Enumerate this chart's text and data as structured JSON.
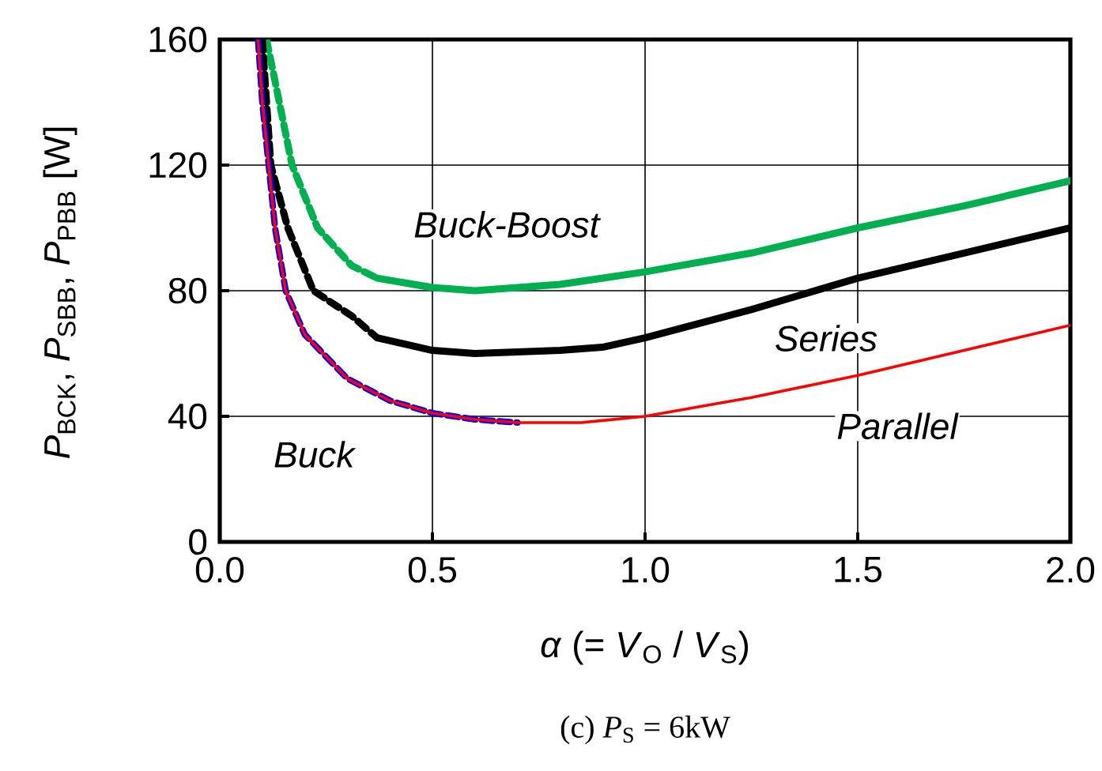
{
  "chart_data": {
    "type": "line",
    "xlabel": "*α* (= *V*$_{O}$ / *V*$_{S}$)",
    "ylabel": "*P*$_{BCK}$, *P*$_{SBB}$, *P*$_{PBB}$ [W]",
    "annotations": [
      "(c) *P*$_{S}$ = 6kW"
    ],
    "xlim": [
      0,
      2
    ],
    "ylim": [
      0,
      160
    ],
    "xticks": [
      {
        "value": 0,
        "label": "0.0"
      },
      {
        "value": 0.5,
        "label": "0.5"
      },
      {
        "value": 1,
        "label": "1.0"
      },
      {
        "value": 1.5,
        "label": "1.5"
      },
      {
        "value": 2,
        "label": "2.0"
      }
    ],
    "yticks": [
      0,
      40,
      80,
      120,
      160
    ],
    "grid": true,
    "marker": "none",
    "series": [
      {
        "color": "#00b050",
        "line_style": "dashed",
        "x": [
          0.11,
          0.14,
          0.17,
          0.23,
          0.31,
          0.37
        ],
        "values": [
          160,
          140,
          120,
          100,
          88,
          84
        ]
      },
      {
        "name": "Buck-Boost",
        "color": "#00b050",
        "line_style": "solid",
        "x": [
          0.37,
          0.5,
          0.6,
          0.8,
          1.0,
          1.25,
          1.5,
          1.75,
          2.0
        ],
        "values": [
          84,
          81,
          80,
          82,
          86,
          92,
          100,
          107,
          115
        ]
      },
      {
        "color": "#000000",
        "line_style": "dashed",
        "x": [
          0.1,
          0.12,
          0.16,
          0.22,
          0.31,
          0.37
        ],
        "values": [
          160,
          120,
          100,
          80,
          72,
          65
        ]
      },
      {
        "name": "Series",
        "color": "#000000",
        "line_style": "solid",
        "x": [
          0.37,
          0.5,
          0.6,
          0.8,
          0.9,
          1.0,
          1.25,
          1.5,
          1.75,
          2.0
        ],
        "values": [
          65,
          61,
          60,
          61,
          62,
          65,
          74,
          84,
          92,
          100
        ]
      },
      {
        "name": "Buck",
        "color": "#0000ff",
        "line_style": "dashed",
        "x": [
          0.09,
          0.1,
          0.115,
          0.13,
          0.155,
          0.2,
          0.25,
          0.3,
          0.4,
          0.5,
          0.6,
          0.7
        ],
        "values": [
          160,
          140,
          120,
          100,
          80,
          66,
          59,
          52,
          45,
          41,
          39,
          38
        ]
      },
      {
        "name": "Parallel",
        "color": "#ff0000",
        "line_style": "solid",
        "x": [
          0.09,
          0.1,
          0.115,
          0.13,
          0.155,
          0.2,
          0.25,
          0.3,
          0.4,
          0.5,
          0.6,
          0.7,
          0.85,
          1.0,
          1.25,
          1.5,
          1.75,
          2.0
        ],
        "values": [
          160,
          140,
          120,
          100,
          80,
          66,
          59,
          52,
          45,
          41,
          39,
          38,
          38,
          40,
          46,
          53,
          61,
          69
        ]
      }
    ]
  }
}
